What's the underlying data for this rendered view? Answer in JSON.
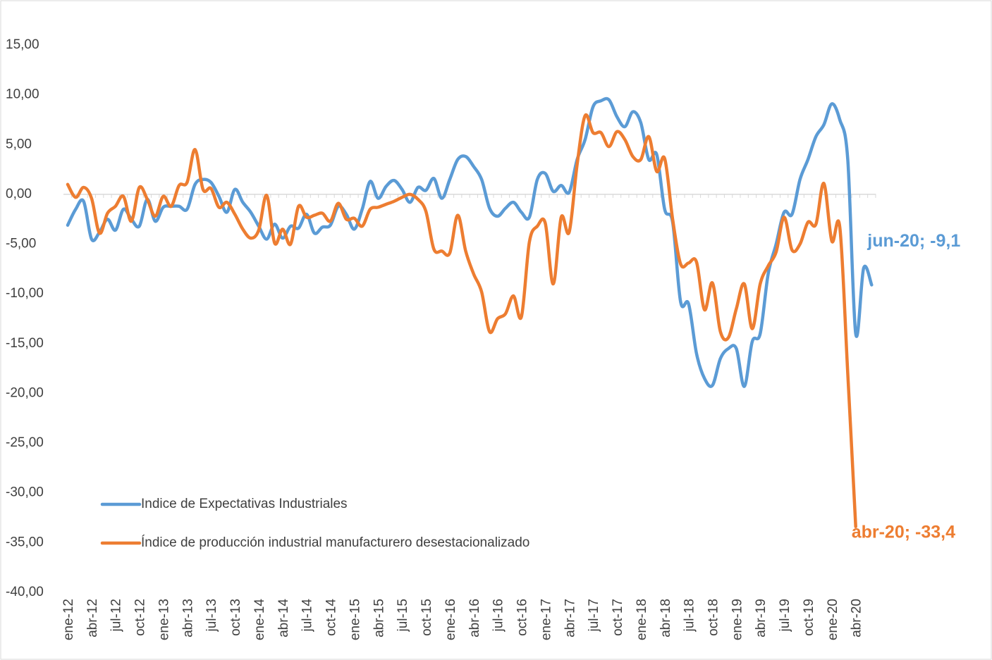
{
  "chart_data": {
    "type": "line",
    "categories": [
      "ene-12",
      null,
      null,
      "abr-12",
      null,
      null,
      "jul-12",
      null,
      null,
      "oct-12",
      null,
      null,
      "ene-13",
      null,
      null,
      "abr-13",
      null,
      null,
      "jul-13",
      null,
      null,
      "oct-13",
      null,
      null,
      "ene-14",
      null,
      null,
      "abr-14",
      null,
      null,
      "jul-14",
      null,
      null,
      "oct-14",
      null,
      null,
      "ene-15",
      null,
      null,
      "abr-15",
      null,
      null,
      "jul-15",
      null,
      null,
      "oct-15",
      null,
      null,
      "ene-16",
      null,
      null,
      "abr-16",
      null,
      null,
      "jul-16",
      null,
      null,
      "oct-16",
      null,
      null,
      "ene-17",
      null,
      null,
      "abr-17",
      null,
      null,
      "jul-17",
      null,
      null,
      "oct-17",
      null,
      null,
      "ene-18",
      null,
      null,
      "abr-18",
      null,
      null,
      "jul-18",
      null,
      null,
      "oct-18",
      null,
      null,
      "ene-19",
      null,
      null,
      "abr-19",
      null,
      null,
      "jul-19",
      null,
      null,
      "oct-19",
      null,
      null,
      "ene-20",
      null,
      null,
      "abr-20",
      null,
      null
    ],
    "series": [
      {
        "name": "Indice de Expectativas Industriales",
        "color": "#5b9bd5",
        "values": [
          -3.1,
          -1.5,
          -0.7,
          -4.5,
          -3.8,
          -2.5,
          -3.6,
          -1.5,
          -2.5,
          -3.2,
          -0.5,
          -2.7,
          -1.3,
          -1.2,
          -1.2,
          -1.5,
          1.0,
          1.5,
          1.2,
          -0.2,
          -1.8,
          0.5,
          -0.8,
          -1.8,
          -3.2,
          -4.5,
          -3.0,
          -4.4,
          -3.2,
          -3.4,
          -2.0,
          -3.9,
          -3.3,
          -3.1,
          -1.2,
          -2.0,
          -3.5,
          -1.5,
          1.3,
          -0.4,
          0.8,
          1.4,
          0.5,
          -0.8,
          0.7,
          0.4,
          1.6,
          -0.4,
          1.5,
          3.5,
          3.8,
          2.8,
          1.5,
          -1.4,
          -2.2,
          -1.4,
          -0.8,
          -1.8,
          -2.3,
          1.5,
          2.1,
          0.3,
          0.9,
          0.2,
          3.5,
          5.5,
          8.8,
          9.4,
          9.5,
          7.8,
          6.8,
          8.3,
          7.2,
          3.5,
          4.0,
          -1.5,
          -2.8,
          -10.8,
          -11.0,
          -16.0,
          -18.5,
          -19.2,
          -16.5,
          -15.5,
          -15.5,
          -19.3,
          -14.8,
          -14.0,
          -8.0,
          -5.0,
          -1.8,
          -2.0,
          1.5,
          3.5,
          5.8,
          7.0,
          9.1,
          7.5,
          3.5,
          -14.0,
          -7.4,
          -9.1
        ]
      },
      {
        "name": "Índice de producción industrial manufacturero desestacionalizado",
        "color": "#ed7d31",
        "values": [
          1.0,
          -0.3,
          0.7,
          -0.4,
          -3.9,
          -1.9,
          -1.2,
          -0.2,
          -2.7,
          0.7,
          -0.5,
          -2.2,
          -0.2,
          -1.2,
          0.9,
          1.2,
          4.5,
          0.5,
          0.6,
          -1.3,
          -0.8,
          -2.0,
          -3.5,
          -4.4,
          -3.6,
          -0.1,
          -4.9,
          -3.5,
          -5.0,
          -1.2,
          -2.3,
          -2.1,
          -1.9,
          -2.7,
          -0.9,
          -2.5,
          -2.4,
          -3.2,
          -1.5,
          -1.3,
          -1.0,
          -0.7,
          -0.3,
          0.0,
          -0.5,
          -1.7,
          -5.5,
          -5.7,
          -5.9,
          -2.1,
          -5.7,
          -8.0,
          -9.8,
          -13.8,
          -12.5,
          -12.0,
          -10.2,
          -12.3,
          -4.8,
          -3.2,
          -2.9,
          -9.0,
          -2.3,
          -3.8,
          3.0,
          7.9,
          6.2,
          6.2,
          4.8,
          6.3,
          5.5,
          3.8,
          3.5,
          5.8,
          2.3,
          3.6,
          -2.5,
          -7.0,
          -6.9,
          -6.8,
          -11.6,
          -8.9,
          -13.8,
          -14.4,
          -11.5,
          -9.0,
          -13.5,
          -9.0,
          -7.2,
          -5.8,
          -2.3,
          -5.6,
          -5.0,
          -2.8,
          -3.0,
          1.1,
          -4.7,
          -3.3,
          -18.0,
          -33.4,
          null,
          null
        ]
      }
    ],
    "ylim": [
      -40,
      15
    ],
    "yticks": [
      {
        "value": -40,
        "label": "-40,00"
      },
      {
        "value": -35,
        "label": "-35,00"
      },
      {
        "value": -30,
        "label": "-30,00"
      },
      {
        "value": -25,
        "label": "-25,00"
      },
      {
        "value": -20,
        "label": "-20,00"
      },
      {
        "value": -15,
        "label": "-15,00"
      },
      {
        "value": -10,
        "label": "-10,00"
      },
      {
        "value": -5,
        "label": "-5,00"
      },
      {
        "value": 0,
        "label": "0,00"
      },
      {
        "value": 5,
        "label": "5,00"
      },
      {
        "value": 10,
        "label": "10,00"
      },
      {
        "value": 15,
        "label": "15,00"
      }
    ],
    "grid": false,
    "legend": "lower left",
    "annotations": [
      {
        "text": "jun-20; -9,1",
        "series": 0,
        "index": 101
      },
      {
        "text": "abr-20; -33,4",
        "series": 1,
        "index": 99
      }
    ]
  }
}
